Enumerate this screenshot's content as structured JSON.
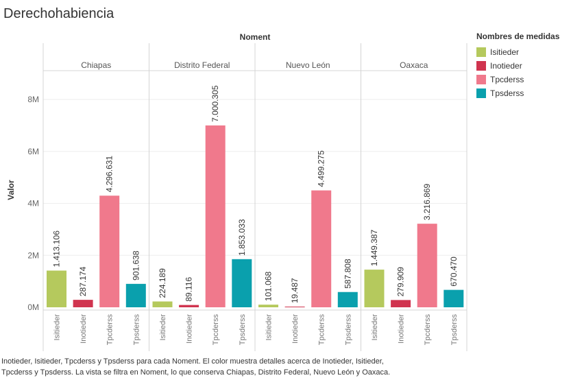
{
  "title": "Derechohabiencia",
  "colors": {
    "Isitieder": "#b5c95d",
    "Inotieder": "#d0344f",
    "Tpcderss": "#f0798c",
    "Tpsderss": "#0aa0ad",
    "grid": "#eeeeee",
    "divider": "#d4d4d4"
  },
  "legend": {
    "title": "Nombres de medidas",
    "items": [
      {
        "label": "Isitieder",
        "color": "#b5c95d"
      },
      {
        "label": "Inotieder",
        "color": "#d0344f"
      },
      {
        "label": "Tpcderss",
        "color": "#f0798c"
      },
      {
        "label": "Tpsderss",
        "color": "#0aa0ad"
      }
    ]
  },
  "caption": {
    "line1": "Inotieder, Isitieder, Tpcderss y Tpsderss para cada Noment.  El color muestra detalles acerca de Inotieder, Isitieder,",
    "line2": "Tpcderss y Tpsderss. La vista se filtra en Noment, lo que conserva Chiapas, Distrito Federal, Nuevo León y Oaxaca."
  },
  "chart_data": {
    "type": "bar",
    "column_header": "Noment",
    "ylabel": "Valor",
    "ylim": [
      0,
      9000000
    ],
    "yticks": [
      {
        "value": 0,
        "label": "0M"
      },
      {
        "value": 2000000,
        "label": "2M"
      },
      {
        "value": 4000000,
        "label": "4M"
      },
      {
        "value": 6000000,
        "label": "6M"
      },
      {
        "value": 8000000,
        "label": "8M"
      }
    ],
    "measures": [
      "Isitieder",
      "Inotieder",
      "Tpcderss",
      "Tpsderss"
    ],
    "panels": [
      {
        "name": "Chiapas",
        "values": [
          1413106,
          287174,
          4296631,
          901638
        ],
        "labels": [
          "1.413.106",
          "287.174",
          "4.296.631",
          "901.638"
        ]
      },
      {
        "name": "Distrito Federal",
        "values": [
          224189,
          89116,
          7000305,
          1853033
        ],
        "labels": [
          "224.189",
          "89.116",
          "7.000.305",
          "1.853.033"
        ]
      },
      {
        "name": "Nuevo León",
        "values": [
          101068,
          19487,
          4499275,
          587808
        ],
        "labels": [
          "101.068",
          "19.487",
          "4.499.275",
          "587.808"
        ]
      },
      {
        "name": "Oaxaca",
        "values": [
          1449387,
          279909,
          3216869,
          670470
        ],
        "labels": [
          "1.449.387",
          "279.909",
          "3.216.869",
          "670.470"
        ]
      }
    ]
  }
}
